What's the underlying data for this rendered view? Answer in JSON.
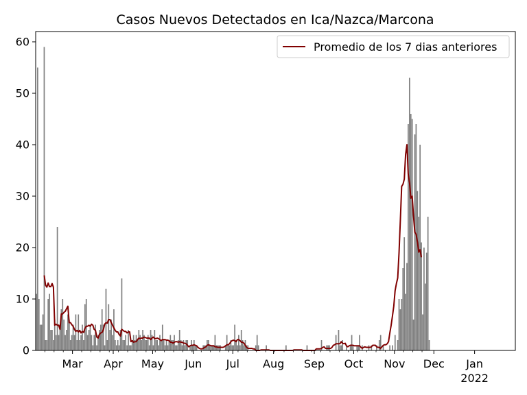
{
  "chart_data": {
    "type": "bar",
    "title": "Casos Nuevos Detectados en Ica/Nazca/Marcona",
    "xlabel": "",
    "ylabel": "",
    "ylim": [
      0,
      62
    ],
    "y_ticks": [
      0,
      10,
      20,
      30,
      40,
      50,
      60
    ],
    "x_tick_labels": [
      "Mar",
      "Apr",
      "May",
      "Jun",
      "Jul",
      "Aug",
      "Sep",
      "Oct",
      "Nov",
      "Dec",
      "Jan\n2022"
    ],
    "grid": false,
    "legend_position": "top-right",
    "colors": {
      "bars": "#808080",
      "line": "#800000"
    },
    "x_date_range": [
      "2021-02-01",
      "2022-01-31"
    ],
    "series": [
      {
        "name": "",
        "type": "bar",
        "values": [
          11,
          55,
          10,
          5,
          5,
          7,
          59,
          2,
          2,
          10,
          11,
          4,
          4,
          2,
          6,
          3,
          24,
          3,
          5,
          8,
          10,
          6,
          3,
          4,
          7,
          6,
          2,
          3,
          5,
          3,
          7,
          2,
          7,
          2,
          3,
          5,
          2,
          9,
          10,
          3,
          4,
          5,
          3,
          1,
          3,
          5,
          1,
          3,
          4,
          5,
          8,
          5,
          1,
          12,
          2,
          9,
          4,
          6,
          3,
          8,
          2,
          1,
          2,
          1,
          4,
          14,
          2,
          2,
          3,
          1,
          4,
          1,
          1,
          2,
          3,
          2,
          3,
          2,
          4,
          3,
          2,
          4,
          3,
          2,
          2,
          3,
          1,
          4,
          3,
          1,
          4,
          2,
          2,
          1,
          3,
          2,
          5,
          2,
          1,
          2,
          1,
          2,
          3,
          2,
          2,
          3,
          1,
          1,
          2,
          4,
          2,
          1,
          2,
          1,
          2,
          2,
          0,
          1,
          2,
          1,
          2,
          1,
          1,
          0,
          0,
          0,
          0,
          1,
          1,
          1,
          2,
          2,
          1,
          1,
          1,
          1,
          3,
          1,
          1,
          1,
          1,
          0,
          0,
          0,
          1,
          3,
          1,
          1,
          2,
          1,
          1,
          5,
          2,
          1,
          3,
          1,
          4,
          2,
          1,
          2,
          1,
          1,
          0,
          0,
          0,
          0,
          0,
          1,
          3,
          1,
          0,
          0,
          0,
          0,
          0,
          1,
          0,
          0,
          0,
          0,
          0,
          0,
          0,
          0,
          0,
          0,
          0,
          0,
          0,
          0,
          1,
          0,
          0,
          0,
          0,
          0,
          0,
          0,
          0,
          0,
          0,
          0,
          0,
          0,
          0,
          0,
          1,
          0,
          0,
          0,
          0,
          0,
          0,
          0,
          0,
          0,
          0,
          2,
          0,
          0,
          0,
          1,
          1,
          1,
          0,
          0,
          0,
          0,
          3,
          0,
          4,
          1,
          1,
          2,
          0,
          0,
          1,
          0,
          0,
          1,
          3,
          1,
          0,
          0,
          1,
          1,
          3,
          0,
          1,
          0,
          0,
          0,
          0,
          1,
          0,
          1,
          0,
          0,
          0,
          1,
          0,
          2,
          3,
          0,
          1,
          0,
          0,
          0,
          0,
          1,
          0,
          1,
          0,
          3,
          0,
          2,
          10,
          8,
          10,
          16,
          22,
          11,
          17,
          44,
          53,
          46,
          45,
          6,
          42,
          44,
          31,
          26,
          40,
          21,
          7,
          20,
          13,
          19,
          26,
          2
        ]
      },
      {
        "name": "Promedio de los 7 dias anteriores",
        "type": "line",
        "values": [
          null,
          null,
          null,
          null,
          null,
          null,
          14.6,
          12.7,
          12.3,
          13.1,
          12.4,
          12.4,
          13.0,
          12.3,
          4.9,
          5.1,
          4.9,
          4.9,
          4.1,
          7.1,
          7.1,
          7.4,
          7.6,
          8.1,
          8.6,
          5.4,
          5.4,
          5.0,
          4.7,
          4.1,
          3.7,
          3.9,
          3.6,
          3.9,
          3.4,
          3.7,
          3.5,
          4.3,
          4.7,
          4.7,
          4.9,
          4.7,
          5.1,
          4.9,
          4.1,
          3.9,
          2.6,
          2.4,
          3.1,
          3.4,
          3.5,
          4.0,
          5.1,
          5.4,
          5.3,
          6.0,
          6.0,
          5.4,
          4.9,
          4.4,
          3.9,
          3.6,
          3.6,
          3.1,
          2.8,
          4.1,
          3.9,
          3.7,
          3.7,
          3.4,
          3.6,
          3.6,
          1.7,
          1.9,
          1.6,
          1.7,
          1.7,
          2.1,
          2.4,
          2.3,
          2.4,
          2.4,
          2.6,
          2.5,
          2.4,
          2.4,
          2.4,
          2.1,
          2.4,
          2.6,
          2.3,
          2.3,
          2.4,
          2.3,
          2.1,
          1.9,
          2.1,
          2.1,
          2.1,
          2.0,
          2.0,
          1.9,
          1.6,
          1.6,
          1.4,
          1.6,
          1.7,
          1.7,
          1.6,
          1.7,
          1.6,
          1.6,
          1.4,
          1.4,
          1.3,
          1.0,
          0.7,
          0.9,
          1.0,
          1.0,
          1.1,
          1.0,
          0.9,
          0.6,
          0.4,
          0.3,
          0.3,
          0.4,
          0.6,
          0.7,
          1.0,
          1.1,
          1.0,
          0.9,
          0.9,
          0.9,
          0.7,
          0.7,
          0.6,
          0.6,
          0.6,
          0.6,
          0.6,
          0.7,
          0.9,
          1.1,
          1.1,
          1.3,
          1.7,
          1.9,
          2.0,
          1.9,
          1.7,
          2.1,
          2.1,
          1.9,
          1.6,
          1.6,
          1.4,
          1.0,
          0.6,
          0.4,
          0.4,
          0.4,
          0.4,
          0.3,
          0.3,
          0.0,
          0.0,
          0.0,
          0.0,
          0.1,
          0.1,
          0.1,
          0.1,
          0.1,
          0.1,
          0.1,
          0.0,
          0.0,
          0.0,
          0.0,
          0.0,
          0.0,
          0.0,
          0.0,
          0.0,
          0.0,
          0.0,
          0.0,
          0.0,
          0.0,
          0.0,
          0.0,
          0.0,
          0.0,
          0.1,
          0.1,
          0.1,
          0.1,
          0.1,
          0.1,
          0.1,
          0.0,
          0.0,
          0.0,
          0.0,
          0.0,
          0.0,
          0.0,
          0.0,
          0.0,
          0.0,
          0.3,
          0.3,
          0.3,
          0.3,
          0.4,
          0.6,
          0.7,
          0.4,
          0.4,
          0.4,
          0.4,
          0.4,
          0.6,
          1.0,
          1.1,
          1.3,
          1.3,
          1.3,
          1.3,
          1.7,
          1.4,
          1.3,
          1.4,
          0.9,
          0.7,
          0.9,
          1.0,
          1.0,
          1.0,
          0.9,
          0.9,
          0.9,
          0.9,
          0.9,
          0.6,
          0.4,
          0.6,
          0.7,
          0.6,
          0.6,
          0.6,
          0.6,
          0.7,
          1.0,
          1.0,
          1.0,
          0.7,
          0.6,
          0.6,
          0.4,
          0.7,
          1.0,
          1.1,
          1.1,
          1.3,
          1.7,
          3.4,
          4.9,
          6.7,
          8.6,
          11.6,
          13.0,
          14.1,
          19.0,
          25.3,
          31.9,
          32.3,
          33.3,
          38.1,
          40.0,
          34.3,
          32.6,
          29.6,
          30.0,
          26.2,
          23.0,
          22.6,
          21.1,
          19.1,
          19.6,
          18.1
        ]
      }
    ]
  }
}
